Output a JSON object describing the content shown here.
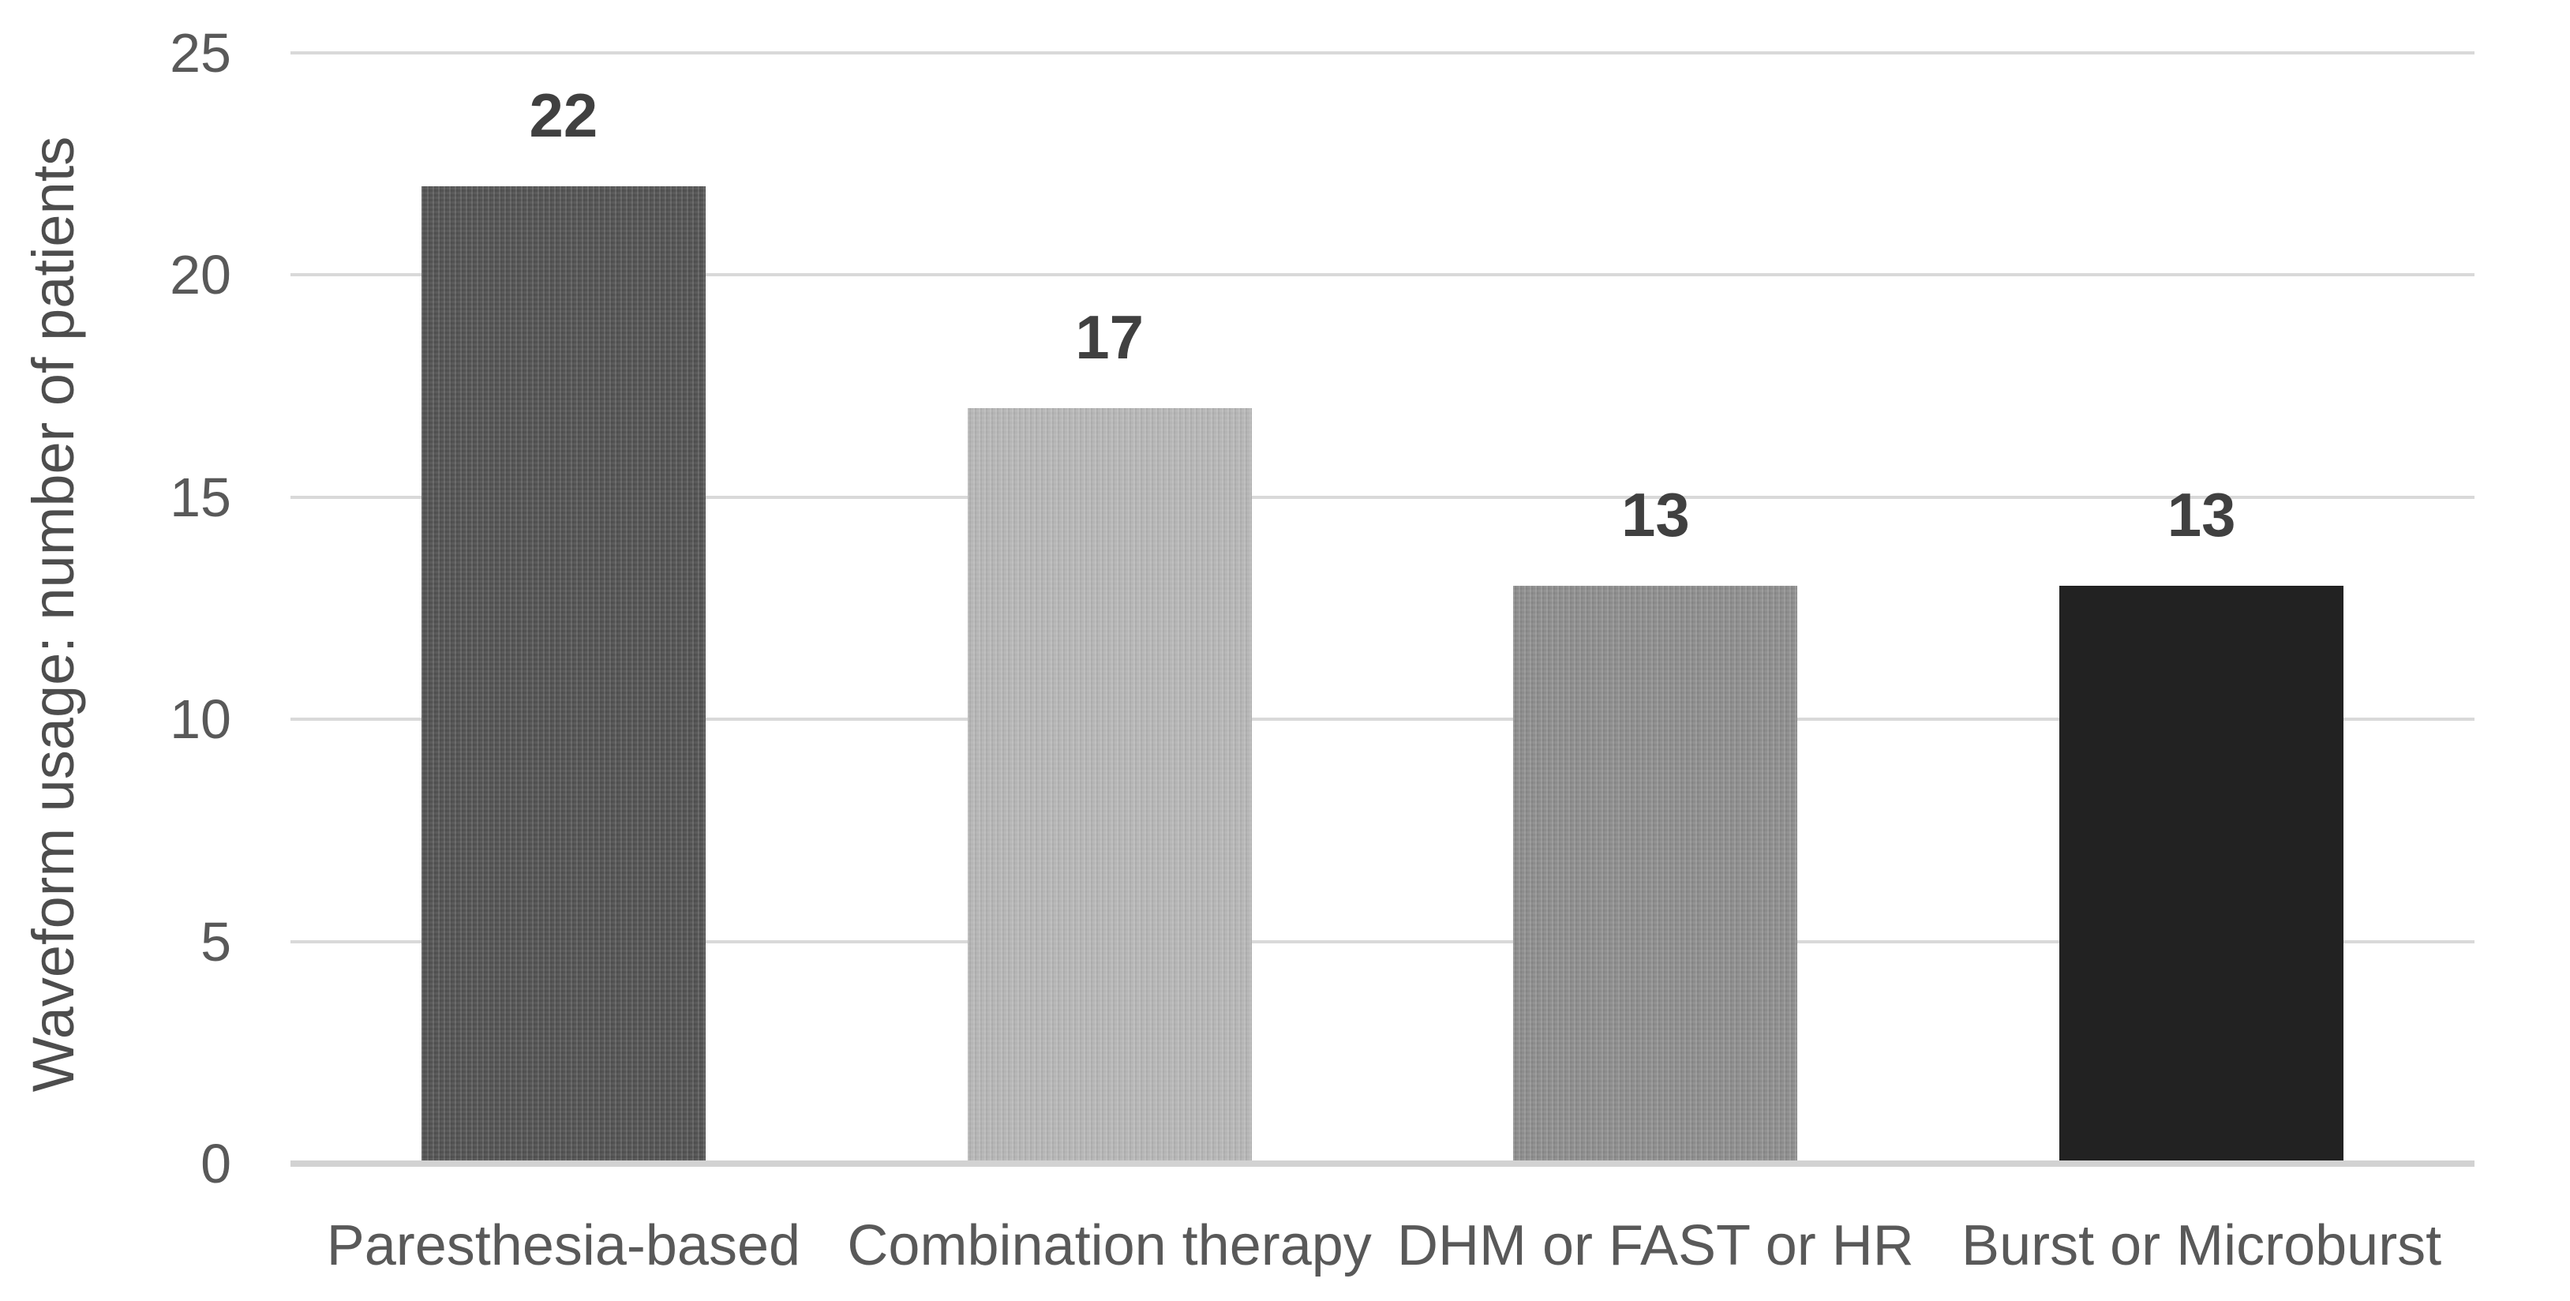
{
  "chart_data": {
    "type": "bar",
    "title": "",
    "xlabel": "",
    "ylabel": "Waveform usage: number of patients",
    "categories": [
      "Paresthesia-based",
      "Combination therapy",
      "DHM or FAST or HR",
      "Burst or Microburst"
    ],
    "values": [
      22,
      17,
      13,
      13
    ],
    "data_labels": [
      "22",
      "17",
      "13",
      "13"
    ],
    "bar_colors": [
      "#525252",
      "#b5b5b5",
      "#8c8c8c",
      "#222222"
    ],
    "bar_textured": [
      true,
      true,
      true,
      false
    ],
    "ylim": [
      0,
      25
    ],
    "yticks": [
      0,
      5,
      10,
      15,
      20,
      25
    ],
    "grid": "horizontal",
    "gridline_color": "#d9d9d9",
    "axis_line_color": "#d2d2d2",
    "tick_text_color": "#595959",
    "category_text_color": "#595959",
    "value_label_color": "#404040",
    "legend": "none",
    "background": "#ffffff"
  }
}
